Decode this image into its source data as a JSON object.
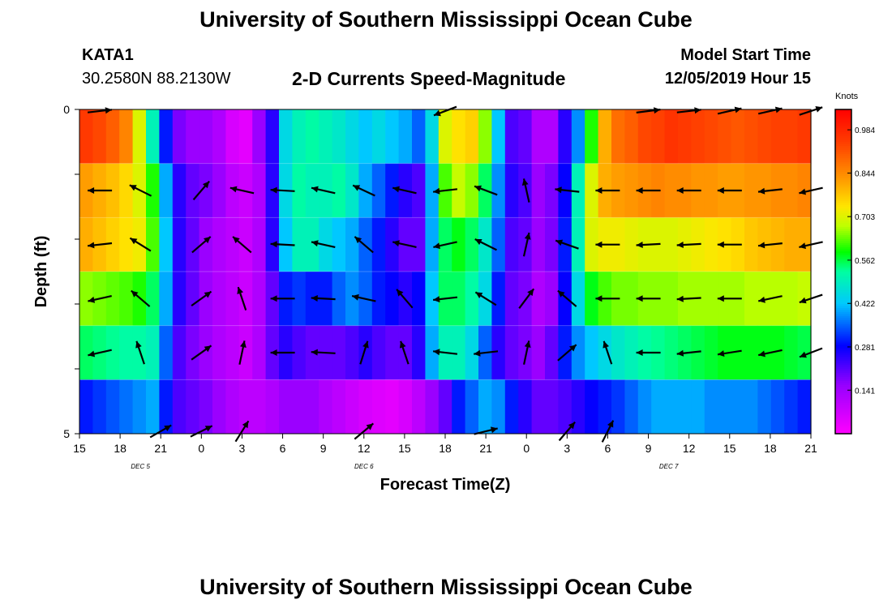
{
  "header": {
    "title": "University of Southern Mississippi Ocean Cube",
    "station": "KATA1",
    "coords": "30.2580N 88.2130W",
    "subtitle": "2-D Currents Speed-Magnitude",
    "model_start_label": "Model Start Time",
    "model_start_time": "12/05/2019 Hour 15",
    "footer_title": "University of Southern Mississippi Ocean Cube"
  },
  "chart_data": {
    "type": "heatmap",
    "title": "2-D Currents Speed-Magnitude",
    "xlabel": "Forecast Time(Z)",
    "ylabel": "Depth (ft)",
    "x_hours": [
      0,
      54
    ],
    "x_ticks": [
      {
        "h": 0,
        "label": "15"
      },
      {
        "h": 3,
        "label": "18"
      },
      {
        "h": 6,
        "label": "21"
      },
      {
        "h": 9,
        "label": "0"
      },
      {
        "h": 12,
        "label": "3"
      },
      {
        "h": 15,
        "label": "6"
      },
      {
        "h": 18,
        "label": "9"
      },
      {
        "h": 21,
        "label": "12"
      },
      {
        "h": 24,
        "label": "15"
      },
      {
        "h": 27,
        "label": "18"
      },
      {
        "h": 30,
        "label": "21"
      },
      {
        "h": 33,
        "label": "0"
      },
      {
        "h": 36,
        "label": "3"
      },
      {
        "h": 39,
        "label": "6"
      },
      {
        "h": 42,
        "label": "9"
      },
      {
        "h": 45,
        "label": "12"
      },
      {
        "h": 48,
        "label": "15"
      },
      {
        "h": 51,
        "label": "18"
      },
      {
        "h": 54,
        "label": "21"
      }
    ],
    "day_labels": [
      {
        "h": 4.5,
        "label": "DEC 5"
      },
      {
        "h": 21,
        "label": "DEC 6"
      },
      {
        "h": 43.5,
        "label": "DEC 7"
      }
    ],
    "y_range": [
      0,
      5
    ],
    "y_ticks": [
      {
        "d": 0,
        "label": "0"
      },
      {
        "d": 1,
        "label": ""
      },
      {
        "d": 2,
        "label": ""
      },
      {
        "d": 3,
        "label": ""
      },
      {
        "d": 4,
        "label": ""
      },
      {
        "d": 5,
        "label": "5"
      }
    ],
    "colorbar": {
      "unit": "Knots",
      "range": [
        0,
        1.05
      ],
      "ticks": [
        "0.984",
        "0.844",
        "0.703",
        "0.562",
        "0.422",
        "0.281",
        "0.141"
      ],
      "tick_values": [
        0.984,
        0.844,
        0.703,
        0.562,
        0.422,
        0.281,
        0.141
      ]
    },
    "layers": [
      {
        "speed": [
          0.95,
          0.93,
          0.9,
          0.85,
          0.7,
          0.5,
          0.3,
          0.18,
          0.15,
          0.15,
          0.12,
          0.06,
          0.04,
          0.15,
          0.25,
          0.45,
          0.5,
          0.52,
          0.5,
          0.48,
          0.45,
          0.42,
          0.45,
          0.42,
          0.4,
          0.35,
          0.45,
          0.7,
          0.74,
          0.76,
          0.65,
          0.42,
          0.22,
          0.2,
          0.12,
          0.12,
          0.25,
          0.38,
          0.6,
          0.8,
          0.88,
          0.9,
          0.93,
          0.94,
          0.96,
          0.95,
          0.94,
          0.93,
          0.92,
          0.91,
          0.92,
          0.93,
          0.94,
          0.94,
          0.95
        ],
        "vectors": [
          {
            "h": 1.5,
            "u": 0.9,
            "v": 0.1
          },
          {
            "h": 27,
            "u": -0.8,
            "v": -0.3
          },
          {
            "h": 42,
            "u": 0.8,
            "v": 0.1
          },
          {
            "h": 45,
            "u": 0.9,
            "v": 0.1
          },
          {
            "h": 48,
            "u": 0.9,
            "v": 0.2
          },
          {
            "h": 51,
            "u": 0.9,
            "v": 0.2
          },
          {
            "h": 54,
            "u": 0.9,
            "v": 0.3
          }
        ]
      },
      {
        "speed": [
          0.82,
          0.8,
          0.78,
          0.75,
          0.7,
          0.6,
          0.4,
          0.25,
          0.2,
          0.18,
          0.15,
          0.1,
          0.08,
          0.12,
          0.25,
          0.45,
          0.52,
          0.5,
          0.5,
          0.52,
          0.48,
          0.4,
          0.35,
          0.3,
          0.25,
          0.22,
          0.4,
          0.62,
          0.68,
          0.65,
          0.55,
          0.38,
          0.25,
          0.22,
          0.15,
          0.18,
          0.28,
          0.5,
          0.7,
          0.8,
          0.82,
          0.83,
          0.84,
          0.85,
          0.84,
          0.84,
          0.83,
          0.83,
          0.82,
          0.82,
          0.83,
          0.83,
          0.84,
          0.84,
          0.85
        ],
        "vectors": [
          {
            "h": 1.5,
            "u": -0.9,
            "v": 0.0
          },
          {
            "h": 4.5,
            "u": -0.8,
            "v": 0.4
          },
          {
            "h": 9,
            "u": 0.6,
            "v": 0.7
          },
          {
            "h": 12,
            "u": -0.9,
            "v": 0.2
          },
          {
            "h": 15,
            "u": -0.95,
            "v": 0.05
          },
          {
            "h": 18,
            "u": -0.9,
            "v": 0.2
          },
          {
            "h": 21,
            "u": -0.85,
            "v": 0.4
          },
          {
            "h": 24,
            "u": -0.9,
            "v": 0.2
          },
          {
            "h": 27,
            "u": -0.9,
            "v": -0.1
          },
          {
            "h": 30,
            "u": -0.8,
            "v": 0.3
          },
          {
            "h": 33,
            "u": -0.2,
            "v": 0.9
          },
          {
            "h": 36,
            "u": -0.95,
            "v": 0.1
          },
          {
            "h": 39,
            "u": -0.95,
            "v": 0.0
          },
          {
            "h": 42,
            "u": -0.95,
            "v": 0.0
          },
          {
            "h": 45,
            "u": -0.95,
            "v": 0.0
          },
          {
            "h": 48,
            "u": -0.95,
            "v": 0.0
          },
          {
            "h": 51,
            "u": -0.95,
            "v": -0.1
          },
          {
            "h": 54,
            "u": -0.9,
            "v": -0.2
          }
        ]
      },
      {
        "speed": [
          0.8,
          0.78,
          0.76,
          0.74,
          0.72,
          0.62,
          0.42,
          0.25,
          0.2,
          0.15,
          0.12,
          0.1,
          0.08,
          0.12,
          0.25,
          0.42,
          0.5,
          0.5,
          0.45,
          0.42,
          0.4,
          0.35,
          0.3,
          0.25,
          0.2,
          0.2,
          0.4,
          0.55,
          0.58,
          0.55,
          0.48,
          0.35,
          0.22,
          0.2,
          0.15,
          0.18,
          0.3,
          0.5,
          0.7,
          0.72,
          0.72,
          0.71,
          0.7,
          0.7,
          0.7,
          0.71,
          0.72,
          0.73,
          0.74,
          0.75,
          0.77,
          0.78,
          0.79,
          0.8,
          0.8
        ],
        "vectors": [
          {
            "h": 1.5,
            "u": -0.9,
            "v": -0.1
          },
          {
            "h": 4.5,
            "u": -0.8,
            "v": 0.5
          },
          {
            "h": 9,
            "u": 0.7,
            "v": 0.6
          },
          {
            "h": 12,
            "u": -0.7,
            "v": 0.6
          },
          {
            "h": 15,
            "u": -0.95,
            "v": 0.05
          },
          {
            "h": 18,
            "u": -0.9,
            "v": 0.2
          },
          {
            "h": 21,
            "u": -0.7,
            "v": 0.6
          },
          {
            "h": 24,
            "u": -0.9,
            "v": 0.2
          },
          {
            "h": 27,
            "u": -0.9,
            "v": -0.2
          },
          {
            "h": 30,
            "u": -0.8,
            "v": 0.4
          },
          {
            "h": 33,
            "u": 0.2,
            "v": 0.9
          },
          {
            "h": 36,
            "u": -0.85,
            "v": 0.3
          },
          {
            "h": 39,
            "u": -0.95,
            "v": 0.0
          },
          {
            "h": 42,
            "u": -0.95,
            "v": -0.05
          },
          {
            "h": 45,
            "u": -0.95,
            "v": -0.05
          },
          {
            "h": 48,
            "u": -0.95,
            "v": 0.0
          },
          {
            "h": 51,
            "u": -0.95,
            "v": -0.1
          },
          {
            "h": 54,
            "u": -0.9,
            "v": -0.2
          }
        ]
      },
      {
        "speed": [
          0.65,
          0.64,
          0.63,
          0.62,
          0.6,
          0.55,
          0.4,
          0.25,
          0.2,
          0.15,
          0.12,
          0.1,
          0.08,
          0.12,
          0.2,
          0.3,
          0.32,
          0.3,
          0.3,
          0.35,
          0.38,
          0.35,
          0.3,
          0.28,
          0.25,
          0.28,
          0.42,
          0.55,
          0.55,
          0.52,
          0.45,
          0.3,
          0.2,
          0.18,
          0.12,
          0.15,
          0.28,
          0.45,
          0.58,
          0.62,
          0.64,
          0.64,
          0.65,
          0.65,
          0.65,
          0.66,
          0.66,
          0.66,
          0.66,
          0.66,
          0.67,
          0.67,
          0.67,
          0.67,
          0.68
        ],
        "vectors": [
          {
            "h": 1.5,
            "u": -0.9,
            "v": -0.2
          },
          {
            "h": 4.5,
            "u": -0.7,
            "v": 0.6
          },
          {
            "h": 9,
            "u": 0.7,
            "v": 0.5
          },
          {
            "h": 12,
            "u": -0.3,
            "v": 0.9
          },
          {
            "h": 15,
            "u": -0.95,
            "v": 0.0
          },
          {
            "h": 18,
            "u": -0.95,
            "v": 0.05
          },
          {
            "h": 21,
            "u": -0.9,
            "v": 0.2
          },
          {
            "h": 24,
            "u": -0.6,
            "v": 0.7
          },
          {
            "h": 27,
            "u": -0.9,
            "v": -0.1
          },
          {
            "h": 30,
            "u": -0.8,
            "v": 0.5
          },
          {
            "h": 33,
            "u": 0.6,
            "v": 0.8
          },
          {
            "h": 36,
            "u": -0.7,
            "v": 0.6
          },
          {
            "h": 39,
            "u": -0.95,
            "v": 0.0
          },
          {
            "h": 42,
            "u": -0.95,
            "v": 0.0
          },
          {
            "h": 45,
            "u": -0.95,
            "v": -0.05
          },
          {
            "h": 48,
            "u": -0.95,
            "v": 0.0
          },
          {
            "h": 51,
            "u": -0.95,
            "v": -0.2
          },
          {
            "h": 54,
            "u": -0.9,
            "v": -0.3
          }
        ]
      },
      {
        "speed": [
          0.55,
          0.54,
          0.53,
          0.52,
          0.52,
          0.5,
          0.35,
          0.22,
          0.18,
          0.15,
          0.12,
          0.1,
          0.08,
          0.12,
          0.2,
          0.25,
          0.22,
          0.2,
          0.2,
          0.2,
          0.22,
          0.25,
          0.22,
          0.2,
          0.2,
          0.25,
          0.4,
          0.5,
          0.5,
          0.45,
          0.35,
          0.25,
          0.2,
          0.18,
          0.15,
          0.2,
          0.3,
          0.38,
          0.42,
          0.45,
          0.48,
          0.5,
          0.52,
          0.53,
          0.54,
          0.55,
          0.56,
          0.57,
          0.58,
          0.58,
          0.58,
          0.58,
          0.58,
          0.57,
          0.56
        ],
        "vectors": [
          {
            "h": 1.5,
            "u": -0.9,
            "v": -0.2
          },
          {
            "h": 4.5,
            "u": -0.3,
            "v": 0.9
          },
          {
            "h": 9,
            "u": 0.7,
            "v": 0.5
          },
          {
            "h": 12,
            "u": 0.2,
            "v": 0.95
          },
          {
            "h": 15,
            "u": -0.95,
            "v": 0.0
          },
          {
            "h": 18,
            "u": -0.95,
            "v": 0.05
          },
          {
            "h": 21,
            "u": 0.3,
            "v": 0.95
          },
          {
            "h": 24,
            "u": -0.3,
            "v": 0.9
          },
          {
            "h": 27,
            "u": -0.9,
            "v": 0.1
          },
          {
            "h": 30,
            "u": -0.9,
            "v": -0.1
          },
          {
            "h": 33,
            "u": 0.2,
            "v": 0.95
          },
          {
            "h": 36,
            "u": 0.7,
            "v": 0.6
          },
          {
            "h": 39,
            "u": -0.3,
            "v": 0.9
          },
          {
            "h": 42,
            "u": -0.95,
            "v": 0.0
          },
          {
            "h": 45,
            "u": -0.95,
            "v": -0.1
          },
          {
            "h": 48,
            "u": -0.95,
            "v": -0.15
          },
          {
            "h": 51,
            "u": -0.95,
            "v": -0.2
          },
          {
            "h": 54,
            "u": -0.9,
            "v": -0.35
          }
        ]
      },
      {
        "speed": [
          0.3,
          0.32,
          0.34,
          0.36,
          0.38,
          0.4,
          0.3,
          0.22,
          0.2,
          0.18,
          0.15,
          0.12,
          0.1,
          0.1,
          0.12,
          0.15,
          0.15,
          0.15,
          0.12,
          0.1,
          0.08,
          0.06,
          0.05,
          0.04,
          0.06,
          0.1,
          0.15,
          0.2,
          0.3,
          0.35,
          0.4,
          0.38,
          0.3,
          0.25,
          0.2,
          0.2,
          0.22,
          0.25,
          0.28,
          0.3,
          0.32,
          0.35,
          0.38,
          0.4,
          0.4,
          0.4,
          0.4,
          0.38,
          0.38,
          0.38,
          0.38,
          0.36,
          0.34,
          0.32,
          0.3
        ],
        "vectors": [
          {
            "h": 6,
            "u": 0.7,
            "v": 0.4
          },
          {
            "h": 9,
            "u": 0.8,
            "v": 0.4
          },
          {
            "h": 12,
            "u": 0.5,
            "v": 0.8
          },
          {
            "h": 21,
            "u": 0.6,
            "v": 0.5
          },
          {
            "h": 30,
            "u": 0.8,
            "v": 0.2
          },
          {
            "h": 36,
            "u": 0.6,
            "v": 0.7
          },
          {
            "h": 39,
            "u": 0.3,
            "v": 0.6
          }
        ]
      }
    ]
  }
}
